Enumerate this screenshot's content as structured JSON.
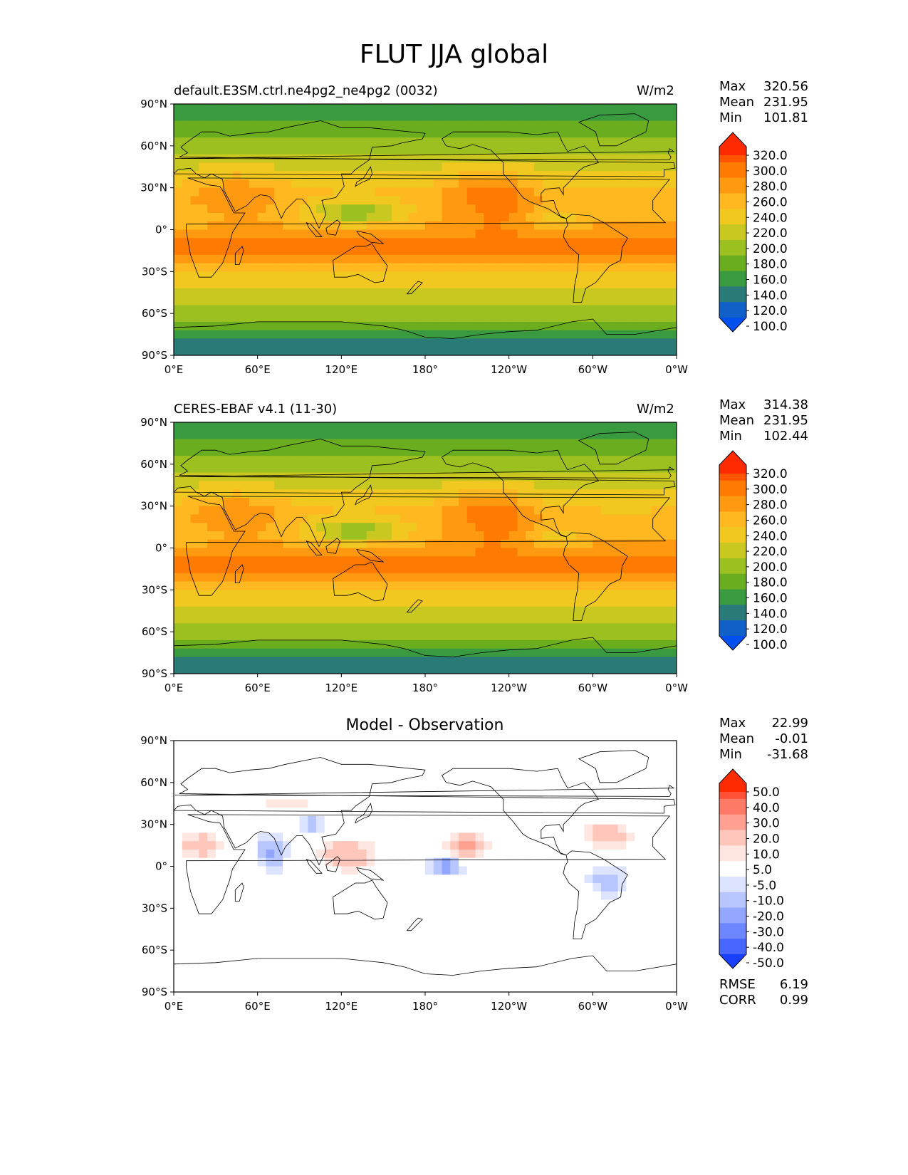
{
  "title": "FLUT JJA global",
  "lon_ticks": [
    "0°E",
    "60°E",
    "120°E",
    "180°",
    "120°W",
    "60°W",
    "0°W"
  ],
  "lat_ticks": [
    "90°N",
    "60°N",
    "30°N",
    "0°",
    "30°S",
    "60°S",
    "90°S"
  ],
  "panels": [
    {
      "title": "default.E3SM.ctrl.ne4pg2_ne4pg2 (0032)",
      "units": "W/m2",
      "stats": [
        [
          "Max",
          "320.56"
        ],
        [
          "Mean",
          "231.95"
        ],
        [
          "Min",
          "101.81"
        ]
      ],
      "colorbar_labels": [
        "320.0",
        "300.0",
        "280.0",
        "260.0",
        "240.0",
        "220.0",
        "200.0",
        "180.0",
        "160.0",
        "140.0",
        "120.0",
        "100.0"
      ],
      "colorbar_colors": [
        "#ff2a00",
        "#ff5500",
        "#ff7a00",
        "#ff9a10",
        "#ffb820",
        "#f0c820",
        "#c8c820",
        "#9cc020",
        "#6aae20",
        "#3a9a40",
        "#2a7a78",
        "#1060c8",
        "#0050f0"
      ]
    },
    {
      "title": "CERES-EBAF v4.1 (11-30)",
      "units": "W/m2",
      "stats": [
        [
          "Max",
          "314.38"
        ],
        [
          "Mean",
          "231.95"
        ],
        [
          "Min",
          "102.44"
        ]
      ],
      "colorbar_labels": [
        "320.0",
        "300.0",
        "280.0",
        "260.0",
        "240.0",
        "220.0",
        "200.0",
        "180.0",
        "160.0",
        "140.0",
        "120.0",
        "100.0"
      ],
      "colorbar_colors": [
        "#ff2a00",
        "#ff5500",
        "#ff7a00",
        "#ff9a10",
        "#ffb820",
        "#f0c820",
        "#c8c820",
        "#9cc020",
        "#6aae20",
        "#3a9a40",
        "#2a7a78",
        "#1060c8",
        "#0050f0"
      ]
    },
    {
      "title": "Model - Observation",
      "units": "",
      "stats": [
        [
          "Max",
          "22.99"
        ],
        [
          "Mean",
          "-0.01"
        ],
        [
          "Min",
          "-31.68"
        ]
      ],
      "colorbar_labels": [
        "50.0",
        "40.0",
        "30.0",
        "20.0",
        "10.0",
        "5.0",
        "-5.0",
        "-10.0",
        "-20.0",
        "-30.0",
        "-40.0",
        "-50.0"
      ],
      "colorbar_colors": [
        "#ff2a00",
        "#ff5038",
        "#ff7a66",
        "#ffa090",
        "#ffc6bc",
        "#ffe6e0",
        "#ffffff",
        "#dde4ff",
        "#b8c6ff",
        "#92a6ff",
        "#6c86ff",
        "#4666ff",
        "#1a40ff"
      ],
      "extra_stats": [
        [
          "RMSE",
          "6.19"
        ],
        [
          "CORR",
          "0.99"
        ]
      ]
    }
  ],
  "chart_data": {
    "type": "heatmap",
    "variable": "FLUT",
    "season": "JJA",
    "region": "global",
    "panels": [
      {
        "name": "default.E3SM.ctrl.ne4pg2_ne4pg2 (0032)",
        "units": "W/m2",
        "max": 320.56,
        "mean": 231.95,
        "min": 101.81,
        "levels": [
          100,
          120,
          140,
          160,
          180,
          200,
          220,
          240,
          260,
          280,
          300,
          320
        ]
      },
      {
        "name": "CERES-EBAF v4.1 (11-30)",
        "units": "W/m2",
        "max": 314.38,
        "mean": 231.95,
        "min": 102.44,
        "levels": [
          100,
          120,
          140,
          160,
          180,
          200,
          220,
          240,
          260,
          280,
          300,
          320
        ]
      },
      {
        "name": "Model - Observation",
        "max": 22.99,
        "mean": -0.01,
        "min": -31.68,
        "rmse": 6.19,
        "corr": 0.99,
        "levels": [
          -50,
          -40,
          -30,
          -20,
          -10,
          -5,
          5,
          10,
          20,
          30,
          40,
          50
        ]
      }
    ]
  }
}
